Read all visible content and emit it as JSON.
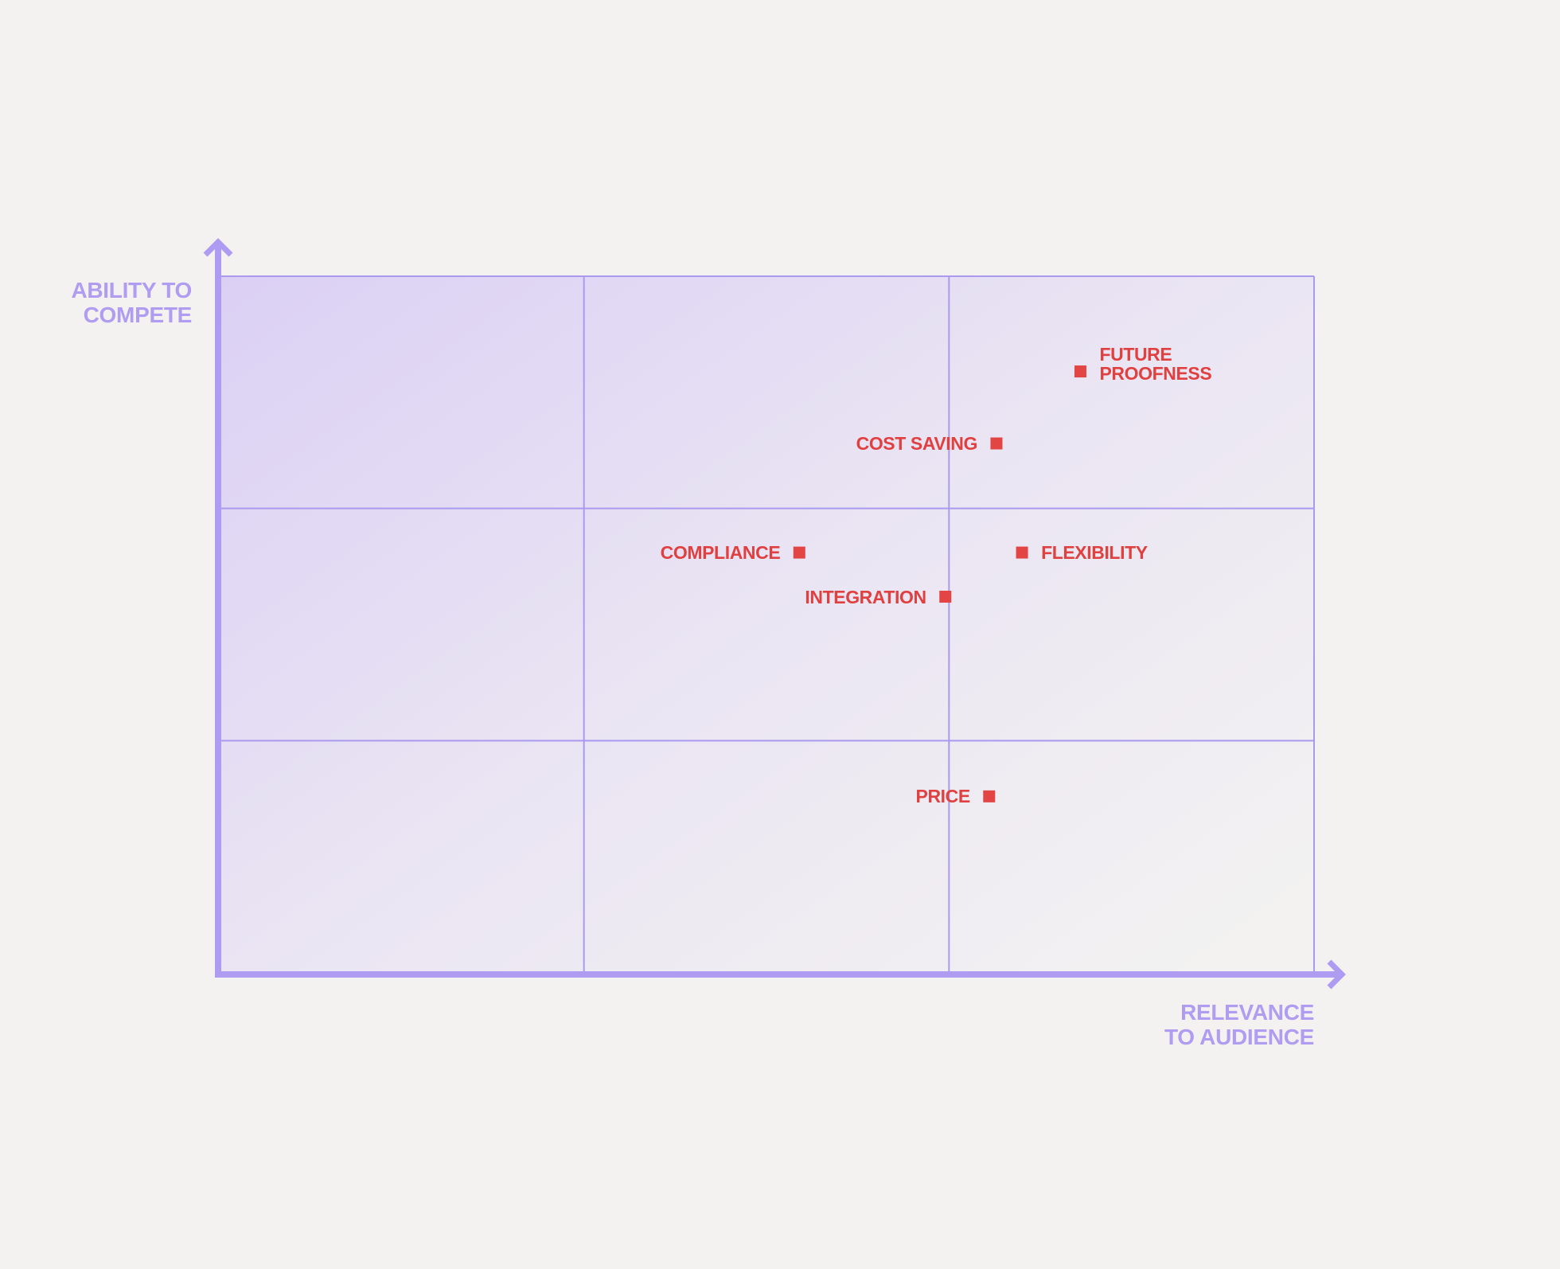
{
  "chart_data": {
    "type": "scatter",
    "ylabel": "ABILITY TO\nCOMPETE",
    "xlabel": "RELEVANCE\nTO AUDIENCE",
    "labels": [
      "FUTURE\nPROOFNESS",
      "COST SAVING",
      "COMPLIANCE",
      "FLEXIBILITY",
      "INTEGRATION",
      "PRICE"
    ],
    "x": [
      2.36,
      2.13,
      1.59,
      2.2,
      1.99,
      2.11
    ],
    "values": [
      2.59,
      2.28,
      1.81,
      1.81,
      1.62,
      0.76
    ],
    "color": "#e24543",
    "xlim": [
      0,
      3
    ],
    "ylim": [
      0,
      3
    ],
    "xticks": [
      1,
      2,
      3
    ],
    "yticks": [
      1,
      2,
      3
    ],
    "grid": true
  }
}
